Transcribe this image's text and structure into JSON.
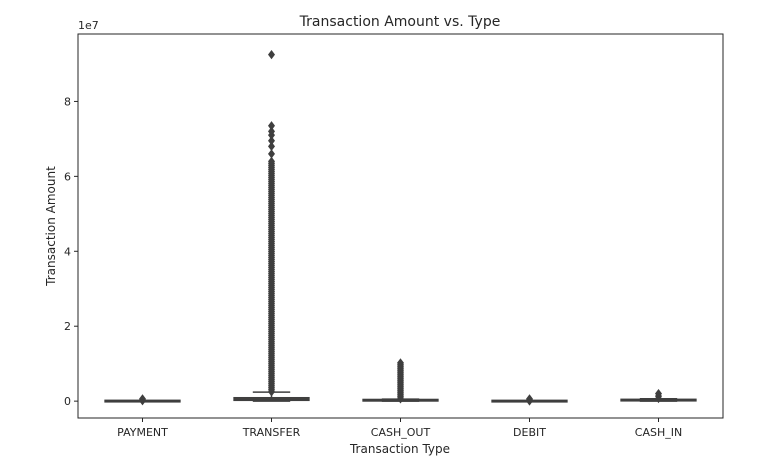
{
  "chart_data": {
    "type": "box",
    "title": "Transaction Amount vs. Type",
    "xlabel": "Transaction Type",
    "ylabel": "Transaction Amount",
    "y_offset_label": "1e7",
    "y_unit_multiplier": 10000000,
    "ylim": [
      -0.45,
      9.8
    ],
    "y_ticks": [
      0,
      2,
      4,
      6,
      8
    ],
    "categories": [
      "PAYMENT",
      "TRANSFER",
      "CASH_OUT",
      "DEBIT",
      "CASH_IN"
    ],
    "box_colors": [
      "#3274a1",
      "#e1812c",
      "#3a923a",
      "#c03d3e",
      "#9372b2"
    ],
    "outline_color": "#3f3f3f",
    "boxes": [
      {
        "category": "PAYMENT",
        "q1": 0.0004,
        "median": 0.0009,
        "q3": 0.0015,
        "whisker_low": 0.0,
        "whisker_high": 0.003,
        "outlier_range": [
          0.01,
          0.06
        ]
      },
      {
        "category": "TRANSFER",
        "q1": 0.022,
        "median": 0.049,
        "q3": 0.091,
        "whisker_low": 0.0,
        "whisker_high": 0.24,
        "outlier_range": [
          0.25,
          6.4
        ],
        "outliers_extra": [
          6.6,
          6.8,
          6.95,
          7.1,
          7.2,
          7.35,
          9.25
        ]
      },
      {
        "category": "CASH_OUT",
        "q1": 0.0073,
        "median": 0.0147,
        "q3": 0.0246,
        "whisker_low": 0.0,
        "whisker_high": 0.054,
        "outlier_range": [
          0.06,
          1.02
        ]
      },
      {
        "category": "DEBIT",
        "q1": 0.0001,
        "median": 0.0004,
        "q3": 0.0009,
        "whisker_low": 0.0,
        "whisker_high": 0.002,
        "outlier_range": [
          0.005,
          0.06
        ]
      },
      {
        "category": "CASH_IN",
        "q1": 0.0041,
        "median": 0.0143,
        "q3": 0.0283,
        "whisker_low": 0.0,
        "whisker_high": 0.064,
        "outlier_range": [
          0.07,
          0.2
        ]
      }
    ],
    "grid": false,
    "legend": "none"
  }
}
